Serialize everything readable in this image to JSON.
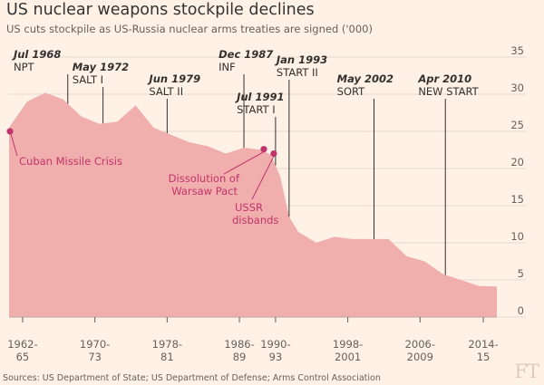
{
  "chart_data": {
    "type": "area",
    "title": "US nuclear weapons stockpile declines",
    "subtitle": "US cuts stockpile as US-Russia nuclear arms treaties are signed ('000)",
    "source": "Sources: US Department of State; US Department of Defense; Arms Control Association",
    "logo": "FT",
    "xlim": [
      1962,
      2016
    ],
    "ylim": [
      0,
      35
    ],
    "ylabel_position": "right",
    "yticks": [
      0,
      5,
      10,
      15,
      20,
      25,
      30,
      35
    ],
    "xticks": [
      {
        "x": 1963.5,
        "line1": "1962-",
        "line2": "65"
      },
      {
        "x": 1971.5,
        "line1": "1970-",
        "line2": "73"
      },
      {
        "x": 1979.5,
        "line1": "1978-",
        "line2": "81"
      },
      {
        "x": 1987.5,
        "line1": "1986-",
        "line2": "89"
      },
      {
        "x": 1991.5,
        "line1": "1990-",
        "line2": "93"
      },
      {
        "x": 1999.5,
        "line1": "1998-",
        "line2": "2001"
      },
      {
        "x": 2007.5,
        "line1": "2006-",
        "line2": "2009"
      },
      {
        "x": 2014.5,
        "line1": "2014-",
        "line2": "15"
      }
    ],
    "series": [
      {
        "name": "US nuclear weapons stockpile ('000)",
        "color": "#f0aead",
        "x": [
          1962,
          1964,
          1966,
          1968,
          1970,
          1972,
          1974,
          1976,
          1978,
          1980,
          1982,
          1984,
          1986,
          1988,
          1990,
          1991,
          1992,
          1993,
          1994,
          1996,
          1998,
          2000,
          2002,
          2004,
          2006,
          2008,
          2010,
          2012,
          2014,
          2016
        ],
        "y": [
          25.5,
          29.0,
          30.2,
          29.3,
          27.0,
          26.0,
          26.3,
          28.5,
          25.5,
          24.5,
          23.5,
          23.0,
          22.0,
          22.8,
          22.5,
          21.8,
          19.0,
          13.5,
          11.5,
          10.0,
          10.8,
          10.5,
          10.5,
          10.5,
          8.2,
          7.5,
          5.8,
          5.0,
          4.2,
          4.1
        ]
      }
    ],
    "annotations": [
      {
        "date": "Jul 1968",
        "label": "NPT",
        "x": 1968.5,
        "textX": 1962.5,
        "textLevel": 1
      },
      {
        "date": "May 1972",
        "label": "SALT I",
        "x": 1972.4,
        "textX": 1969.0,
        "textLevel": 2
      },
      {
        "date": "Jun 1979",
        "label": "SALT II",
        "x": 1979.5,
        "textX": 1977.5,
        "textLevel": 3
      },
      {
        "date": "Dec 1987",
        "label": "INF",
        "x": 1988.0,
        "textX": 1985.2,
        "textLevel": 1
      },
      {
        "date": "Jul 1991",
        "label": "START I",
        "x": 1991.5,
        "textX": 1987.2,
        "textLevel": 4
      },
      {
        "date": "Jan 1993",
        "label": "START II",
        "x": 1993.0,
        "textX": 1991.6,
        "textLevel": 0
      },
      {
        "date": "May 2002",
        "label": "SORT",
        "x": 2002.4,
        "textX": 1998.3,
        "textLevel": 3
      },
      {
        "date": "Apr 2010",
        "label": "NEW START",
        "x": 2010.3,
        "textX": 2007.3,
        "textLevel": 3
      }
    ],
    "events": [
      {
        "label": "Cuban Missile Crisis",
        "x": 1962.0,
        "y": 25.0
      },
      {
        "label": "Dissolution of Warsaw Pact",
        "line1": "Dissolution of",
        "line2": "Warsaw Pact",
        "x": 1990.2,
        "y": 22.6
      },
      {
        "label": "USSR disbands",
        "line1": "USSR",
        "line2": "disbands",
        "x": 1991.3,
        "y": 22.0
      }
    ],
    "colors": {
      "background": "#fff1e5",
      "area": "#f0aead",
      "event": "#c1346b",
      "grid": "#e6d9ce",
      "text": "#33302e",
      "muted": "#66605c"
    }
  }
}
